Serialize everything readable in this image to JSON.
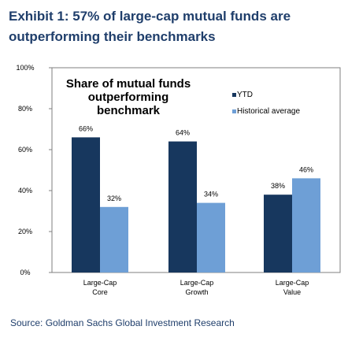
{
  "exhibit": {
    "title": "Exhibit 1: 57% of large-cap mutual funds are outperforming their benchmarks"
  },
  "source": "Source: Goldman Sachs Global Investment Research",
  "chart_data": {
    "type": "bar",
    "title": "Share of mutual funds outperforming benchmark",
    "title_lines": [
      "Share of mutual funds",
      "outperforming",
      "benchmark"
    ],
    "categories": [
      "Large-Cap Core",
      "Large-Cap Growth",
      "Large-Cap Value"
    ],
    "category_lines": [
      [
        "Large-Cap",
        "Core"
      ],
      [
        "Large-Cap",
        "Growth"
      ],
      [
        "Large-Cap",
        "Value"
      ]
    ],
    "series": [
      {
        "name": "YTD",
        "values": [
          66,
          64,
          38
        ],
        "color": "#17375e"
      },
      {
        "name": "Historical average",
        "values": [
          32,
          34,
          46
        ],
        "color": "#6e9fd6"
      }
    ],
    "value_labels": [
      [
        "66%",
        "64%",
        "38%"
      ],
      [
        "32%",
        "34%",
        "46%"
      ]
    ],
    "yticks": [
      0,
      20,
      40,
      60,
      80,
      100
    ],
    "ytick_labels": [
      "0%",
      "20%",
      "40%",
      "60%",
      "80%",
      "100%"
    ],
    "ylim": [
      0,
      100
    ],
    "xlabel": "",
    "ylabel": "",
    "grid": false,
    "legend_position": "top-right"
  }
}
